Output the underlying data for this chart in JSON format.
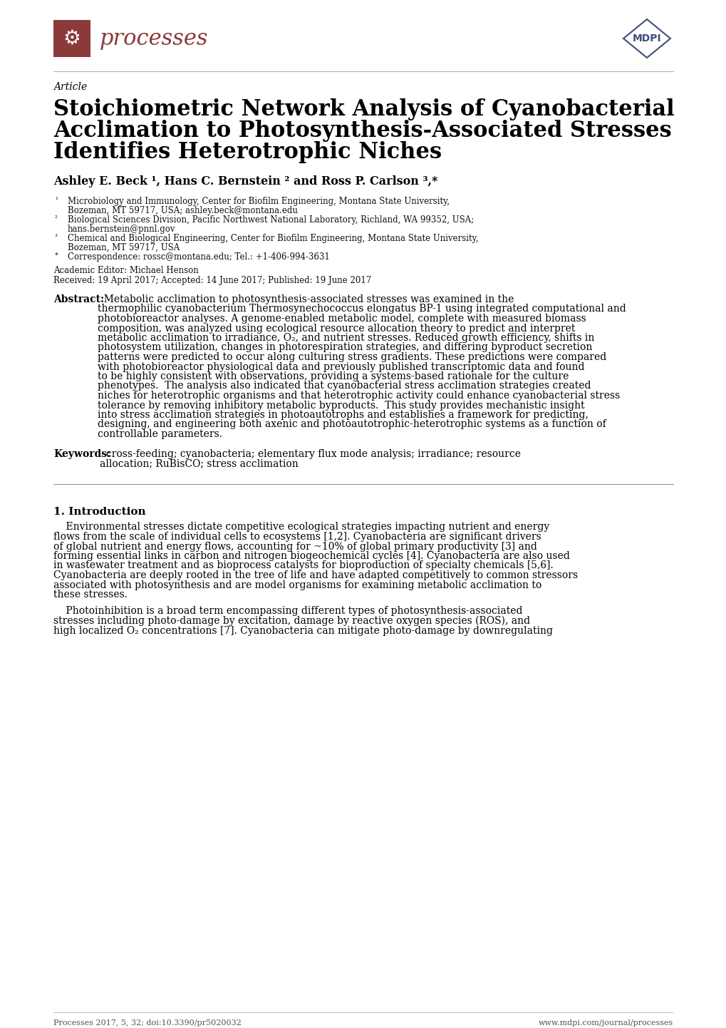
{
  "bg_color": "#ffffff",
  "journal_name": "processes",
  "journal_color": "#8B3A3A",
  "article_label": "Article",
  "title_line1": "Stoichiometric Network Analysis of Cyanobacterial",
  "title_line2": "Acclimation to Photosynthesis-Associated Stresses",
  "title_line3": "Identifies Heterotrophic Niches",
  "authors": "Ashley E. Beck ¹, Hans C. Bernstein ² and Ross P. Carlson ³,*",
  "academic_editor": "Academic Editor: Michael Henson",
  "received": "Received: 19 April 2017; Accepted: 14 June 2017; Published: 19 June 2017",
  "abstract_label": "Abstract:",
  "keywords_label": "Keywords:",
  "keywords_text": "  cross-feeding; cyanobacteria; elementary flux mode analysis; irradiance; resource allocation; RuBisCO; stress acclimation",
  "section_label": "1. Introduction",
  "footer_left": "Processes 2017, 5, 32; doi:10.3390/pr5020032",
  "footer_right": "www.mdpi.com/journal/processes",
  "affil_rows": [
    [
      "¹",
      "Microbiology and Immunology, Center for Biofilm Engineering, Montana State University,"
    ],
    [
      "",
      "Bozeman, MT 59717, USA; ashley.beck@montana.edu"
    ],
    [
      "²",
      "Biological Sciences Division, Pacific Northwest National Laboratory, Richland, WA 99352, USA;"
    ],
    [
      "",
      "hans.bernstein@pnnl.gov"
    ],
    [
      "³",
      "Chemical and Biological Engineering, Center for Biofilm Engineering, Montana State University,"
    ],
    [
      "",
      "Bozeman, MT 59717, USA"
    ],
    [
      "*",
      "Correspondence: rossc@montana.edu; Tel.: +1-406-994-3631"
    ]
  ],
  "abstract_lines": [
    "  Metabolic acclimation to photosynthesis-associated stresses was examined in the",
    "thermophilic cyanobacterium Thermosynechococcus elongatus BP-1 using integrated computational and",
    "photobioreactor analyses. A genome-enabled metabolic model, complete with measured biomass",
    "composition, was analyzed using ecological resource allocation theory to predict and interpret",
    "metabolic acclimation to irradiance, O₂, and nutrient stresses. Reduced growth efficiency, shifts in",
    "photosystem utilization, changes in photorespiration strategies, and differing byproduct secretion",
    "patterns were predicted to occur along culturing stress gradients. These predictions were compared",
    "with photobioreactor physiological data and previously published transcriptomic data and found",
    "to be highly consistent with observations, providing a systems-based rationale for the culture",
    "phenotypes.  The analysis also indicated that cyanobacterial stress acclimation strategies created",
    "niches for heterotrophic organisms and that heterotrophic activity could enhance cyanobacterial stress",
    "tolerance by removing inhibitory metabolic byproducts.  This study provides mechanistic insight",
    "into stress acclimation strategies in photoautotrophs and establishes a framework for predicting,",
    "designing, and engineering both axenic and photoautotrophic-heterotrophic systems as a function of",
    "controllable parameters."
  ],
  "kw_lines": [
    "  cross-feeding; cyanobacteria; elementary flux mode analysis; irradiance; resource",
    "allocation; RuBisCO; stress acclimation"
  ],
  "intro1_lines": [
    "    Environmental stresses dictate competitive ecological strategies impacting nutrient and energy",
    "flows from the scale of individual cells to ecosystems [1,2]. Cyanobacteria are significant drivers",
    "of global nutrient and energy flows, accounting for ~10% of global primary productivity [3] and",
    "forming essential links in carbon and nitrogen biogeochemical cycles [4]. Cyanobacteria are also used",
    "in wastewater treatment and as bioprocess catalysts for bioproduction of specialty chemicals [5,6].",
    "Cyanobacteria are deeply rooted in the tree of life and have adapted competitively to common stressors",
    "associated with photosynthesis and are model organisms for examining metabolic acclimation to",
    "these stresses."
  ],
  "intro2_lines": [
    "    Photoinhibition is a broad term encompassing different types of photosynthesis-associated",
    "stresses including photo-damage by excitation, damage by reactive oxygen species (ROS), and",
    "high localized O₂ concentrations [7]. Cyanobacteria can mitigate photo-damage by downregulating"
  ]
}
